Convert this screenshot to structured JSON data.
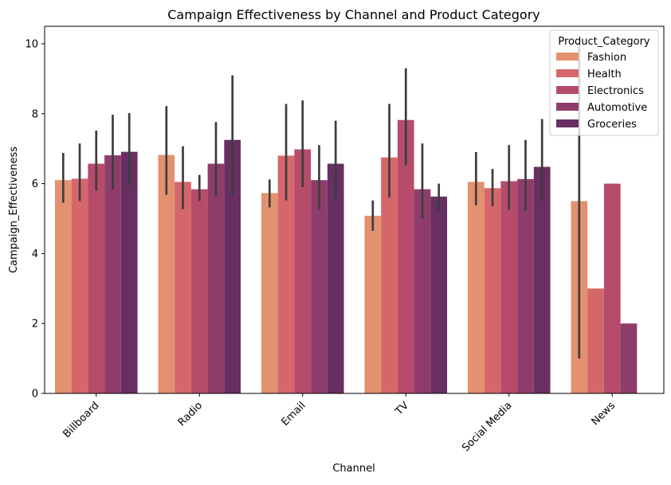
{
  "chart_data": {
    "type": "bar",
    "title": "Campaign Effectiveness by Channel and Product Category",
    "xlabel": "Channel",
    "ylabel": "Campaign_Effectiveness",
    "ylim": [
      0,
      10.5
    ],
    "yticks": [
      0,
      2,
      4,
      6,
      8,
      10
    ],
    "grid": false,
    "categories": [
      "Billboard",
      "Radio",
      "Email",
      "TV",
      "Social Media",
      "News"
    ],
    "legend": {
      "title": "Product_Category",
      "placement": "top-right"
    },
    "series": [
      {
        "name": "Fashion",
        "color": "#e3916e",
        "values": [
          6.1,
          6.82,
          5.73,
          5.08,
          6.05,
          5.5
        ],
        "ci": [
          [
            5.45,
            6.88
          ],
          [
            5.68,
            8.22
          ],
          [
            5.32,
            6.12
          ],
          [
            4.65,
            5.52
          ],
          [
            5.38,
            6.9
          ],
          [
            1.0,
            10.0
          ]
        ]
      },
      {
        "name": "Health",
        "color": "#d5676a",
        "values": [
          6.14,
          6.05,
          6.8,
          6.75,
          5.87,
          3.0
        ],
        "ci": [
          [
            5.5,
            7.15
          ],
          [
            5.27,
            7.07
          ],
          [
            5.52,
            8.28
          ],
          [
            5.6,
            8.28
          ],
          [
            5.35,
            6.42
          ],
          [
            3.0,
            3.0
          ]
        ]
      },
      {
        "name": "Electronics",
        "color": "#b64b6c",
        "values": [
          6.57,
          5.84,
          6.98,
          7.82,
          6.07,
          6.0
        ],
        "ci": [
          [
            5.8,
            7.52
          ],
          [
            5.5,
            6.25
          ],
          [
            5.9,
            8.38
          ],
          [
            6.52,
            9.3
          ],
          [
            5.25,
            7.1
          ],
          [
            6.0,
            6.0
          ]
        ]
      },
      {
        "name": "Automotive",
        "color": "#8e3d6b",
        "values": [
          6.81,
          6.57,
          6.1,
          5.84,
          6.13,
          2.0
        ],
        "ci": [
          [
            5.83,
            7.97
          ],
          [
            5.65,
            7.76
          ],
          [
            5.27,
            7.1
          ],
          [
            5.0,
            7.15
          ],
          [
            5.22,
            7.25
          ],
          [
            2.0,
            2.0
          ]
        ]
      },
      {
        "name": "Groceries",
        "color": "#672f62",
        "values": [
          6.91,
          7.25,
          6.57,
          5.63,
          6.48,
          null
        ],
        "ci": [
          [
            5.95,
            8.02
          ],
          [
            5.65,
            9.1
          ],
          [
            5.55,
            7.8
          ],
          [
            5.23,
            6.0
          ],
          [
            5.52,
            7.85
          ],
          null
        ]
      }
    ]
  }
}
